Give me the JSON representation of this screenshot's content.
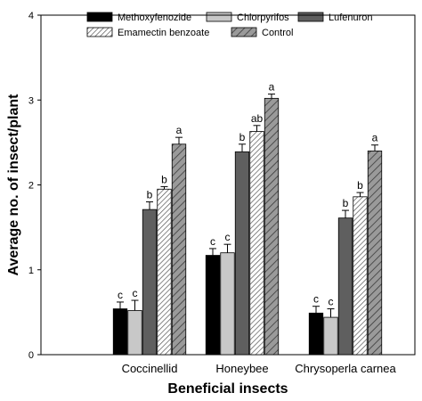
{
  "chart_data": {
    "type": "bar",
    "xlabel": "Beneficial insects",
    "ylabel": "Average no. of insect/plant",
    "ylim": [
      0,
      4
    ],
    "yticks": [
      0,
      1,
      2,
      3,
      4
    ],
    "grid": false,
    "legend_position": "top",
    "categories": [
      "Coccinellid",
      "Honeybee",
      "Chrysoperla carnea"
    ],
    "series": [
      {
        "name": "Methoxyfenozide",
        "color": "#000000",
        "pattern": "solid",
        "values": [
          0.54,
          1.17,
          0.49
        ],
        "errors": [
          0.08,
          0.08,
          0.08
        ],
        "labels": [
          "c",
          "c",
          "c"
        ]
      },
      {
        "name": "Chlorpyrifos",
        "color": "#c8c8c8",
        "pattern": "solid",
        "values": [
          0.52,
          1.2,
          0.44
        ],
        "errors": [
          0.12,
          0.1,
          0.1
        ],
        "labels": [
          "c",
          "c",
          "c"
        ]
      },
      {
        "name": "Lufenuron",
        "color": "#5f5f5f",
        "pattern": "solid",
        "values": [
          1.71,
          2.39,
          1.61
        ],
        "errors": [
          0.09,
          0.09,
          0.09
        ],
        "labels": [
          "b",
          "b",
          "b"
        ]
      },
      {
        "name": "Emamectin benzoate",
        "color": "#ffffff",
        "pattern": "hatch-dense",
        "values": [
          1.95,
          2.63,
          1.86
        ],
        "errors": [
          0.03,
          0.07,
          0.05
        ],
        "labels": [
          "b",
          "ab",
          "b"
        ]
      },
      {
        "name": "Control",
        "color": "#9a9a9a",
        "pattern": "hatch",
        "values": [
          2.48,
          3.02,
          2.4
        ],
        "errors": [
          0.08,
          0.05,
          0.07
        ],
        "labels": [
          "a",
          "a",
          "a"
        ]
      }
    ]
  }
}
